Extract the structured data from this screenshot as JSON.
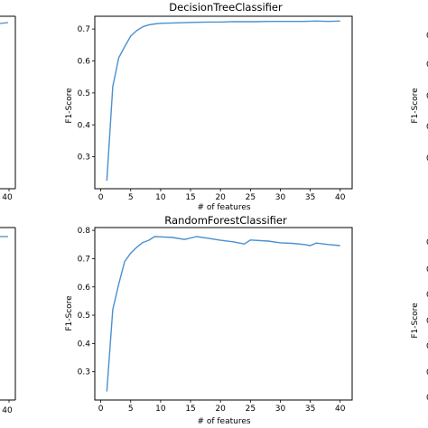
{
  "chart_data": [
    {
      "type": "line",
      "panel": "left-top-partial",
      "title": "",
      "xlabel": "",
      "ylabel": "",
      "x_ticks": [
        40
      ],
      "y_ticks": [],
      "xlim": [
        0,
        41
      ],
      "ylim": [
        0.2,
        0.75
      ],
      "series": [
        {
          "x": [
            38,
            41
          ],
          "y": [
            0.725,
            0.725
          ]
        }
      ]
    },
    {
      "type": "line",
      "panel": "center-top",
      "title": "DecisionTreeClassifier",
      "xlabel": "",
      "ylabel": "F1-Score",
      "x_ticks": [
        0,
        5,
        10,
        15,
        20,
        25,
        30,
        35,
        40
      ],
      "y_ticks": [
        0.3,
        0.4,
        0.5,
        0.6,
        0.7
      ],
      "xlim": [
        -1,
        42
      ],
      "ylim": [
        0.2,
        0.74
      ],
      "grid": false,
      "series": [
        {
          "x": [
            1,
            2,
            3,
            4,
            5,
            6,
            7,
            8,
            9,
            10,
            12,
            14,
            16,
            18,
            20,
            22,
            24,
            26,
            28,
            30,
            32,
            34,
            36,
            38,
            40
          ],
          "y": [
            0.225,
            0.52,
            0.61,
            0.645,
            0.678,
            0.695,
            0.707,
            0.713,
            0.716,
            0.718,
            0.719,
            0.72,
            0.721,
            0.722,
            0.722,
            0.723,
            0.723,
            0.723,
            0.724,
            0.724,
            0.724,
            0.724,
            0.725,
            0.724,
            0.725
          ],
          "color": "#4a90d0"
        }
      ]
    },
    {
      "type": "line",
      "panel": "right-top-partial",
      "title": "",
      "xlabel": "",
      "ylabel": "F1-Score",
      "x_ticks": [],
      "y_ticks": [],
      "series": []
    },
    {
      "type": "line",
      "panel": "left-bottom-partial",
      "title": "",
      "xlabel": "",
      "ylabel": "",
      "x_ticks": [
        40
      ],
      "y_ticks": [],
      "xlim": [
        0,
        41
      ],
      "ylim": [
        0.2,
        0.8
      ],
      "series": [
        {
          "x": [
            38,
            41
          ],
          "y": [
            0.775,
            0.775
          ]
        }
      ]
    },
    {
      "type": "line",
      "panel": "center-bottom",
      "title": "RandomForestClassifier",
      "xlabel": "# of features",
      "ylabel": "F1-Score",
      "x_ticks": [
        0,
        5,
        10,
        15,
        20,
        25,
        30,
        35,
        40
      ],
      "y_ticks": [
        0.3,
        0.4,
        0.5,
        0.6,
        0.7,
        0.8
      ],
      "xlim": [
        -1,
        42
      ],
      "ylim": [
        0.2,
        0.81
      ],
      "grid": false,
      "series": [
        {
          "x": [
            1,
            2,
            3,
            4,
            5,
            6,
            7,
            8,
            9,
            10,
            12,
            14,
            16,
            18,
            20,
            22,
            24,
            25,
            28,
            30,
            32,
            34,
            35,
            36,
            38,
            40
          ],
          "y": [
            0.23,
            0.52,
            0.61,
            0.69,
            0.72,
            0.74,
            0.757,
            0.765,
            0.778,
            0.777,
            0.775,
            0.768,
            0.778,
            0.772,
            0.765,
            0.76,
            0.752,
            0.766,
            0.762,
            0.756,
            0.754,
            0.75,
            0.746,
            0.755,
            0.75,
            0.746
          ],
          "color": "#4a90d0"
        }
      ]
    },
    {
      "type": "line",
      "panel": "right-bottom-partial",
      "title": "",
      "xlabel": "",
      "ylabel": "F1-Score",
      "x_ticks": [],
      "y_ticks": [],
      "series": []
    }
  ],
  "partial_tick_label": "0",
  "center_top_xlabel": "# of features"
}
